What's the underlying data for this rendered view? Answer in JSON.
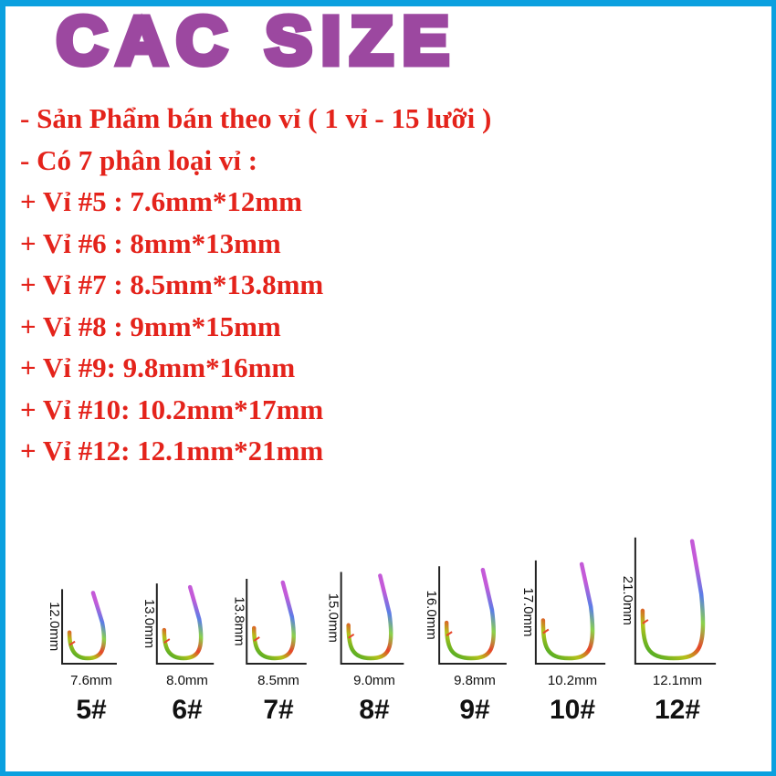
{
  "title": "CAC SIZE",
  "colors": {
    "border": "#0ba0df",
    "title": "#9c48a0",
    "text": "#e4231b"
  },
  "lines": [
    "- Sản Phẩm bán theo vỉ ( 1 vỉ - 15 lưỡi )",
    "- Có 7 phân loại vỉ :",
    "+ Vỉ #5 : 7.6mm*12mm",
    "+ Vỉ #6 : 8mm*13mm",
    "+ Vỉ #7 : 8.5mm*13.8mm",
    "+ Vỉ #8 : 9mm*15mm",
    "+ Vỉ #9: 9.8mm*16mm",
    "+ Vỉ #10: 10.2mm*17mm",
    "+ Vỉ #12: 12.1mm*21mm"
  ],
  "hooks": [
    {
      "size": "5#",
      "width_label": "7.6mm",
      "height_label": "12.0mm",
      "width_mm": 7.6,
      "height_mm": 12.0
    },
    {
      "size": "6#",
      "width_label": "8.0mm",
      "height_label": "13.0mm",
      "width_mm": 8.0,
      "height_mm": 13.0
    },
    {
      "size": "7#",
      "width_label": "8.5mm",
      "height_label": "13.8mm",
      "width_mm": 8.5,
      "height_mm": 13.8
    },
    {
      "size": "8#",
      "width_label": "9.0mm",
      "height_label": "15.0mm",
      "width_mm": 9.0,
      "height_mm": 15.0
    },
    {
      "size": "9#",
      "width_label": "9.8mm",
      "height_label": "16.0mm",
      "width_mm": 9.8,
      "height_mm": 16.0
    },
    {
      "size": "10#",
      "width_label": "10.2mm",
      "height_label": "17.0mm",
      "width_mm": 10.2,
      "height_mm": 17.0
    },
    {
      "size": "12#",
      "width_label": "12.1mm",
      "height_label": "21.0mm",
      "width_mm": 12.1,
      "height_mm": 21.0
    }
  ]
}
